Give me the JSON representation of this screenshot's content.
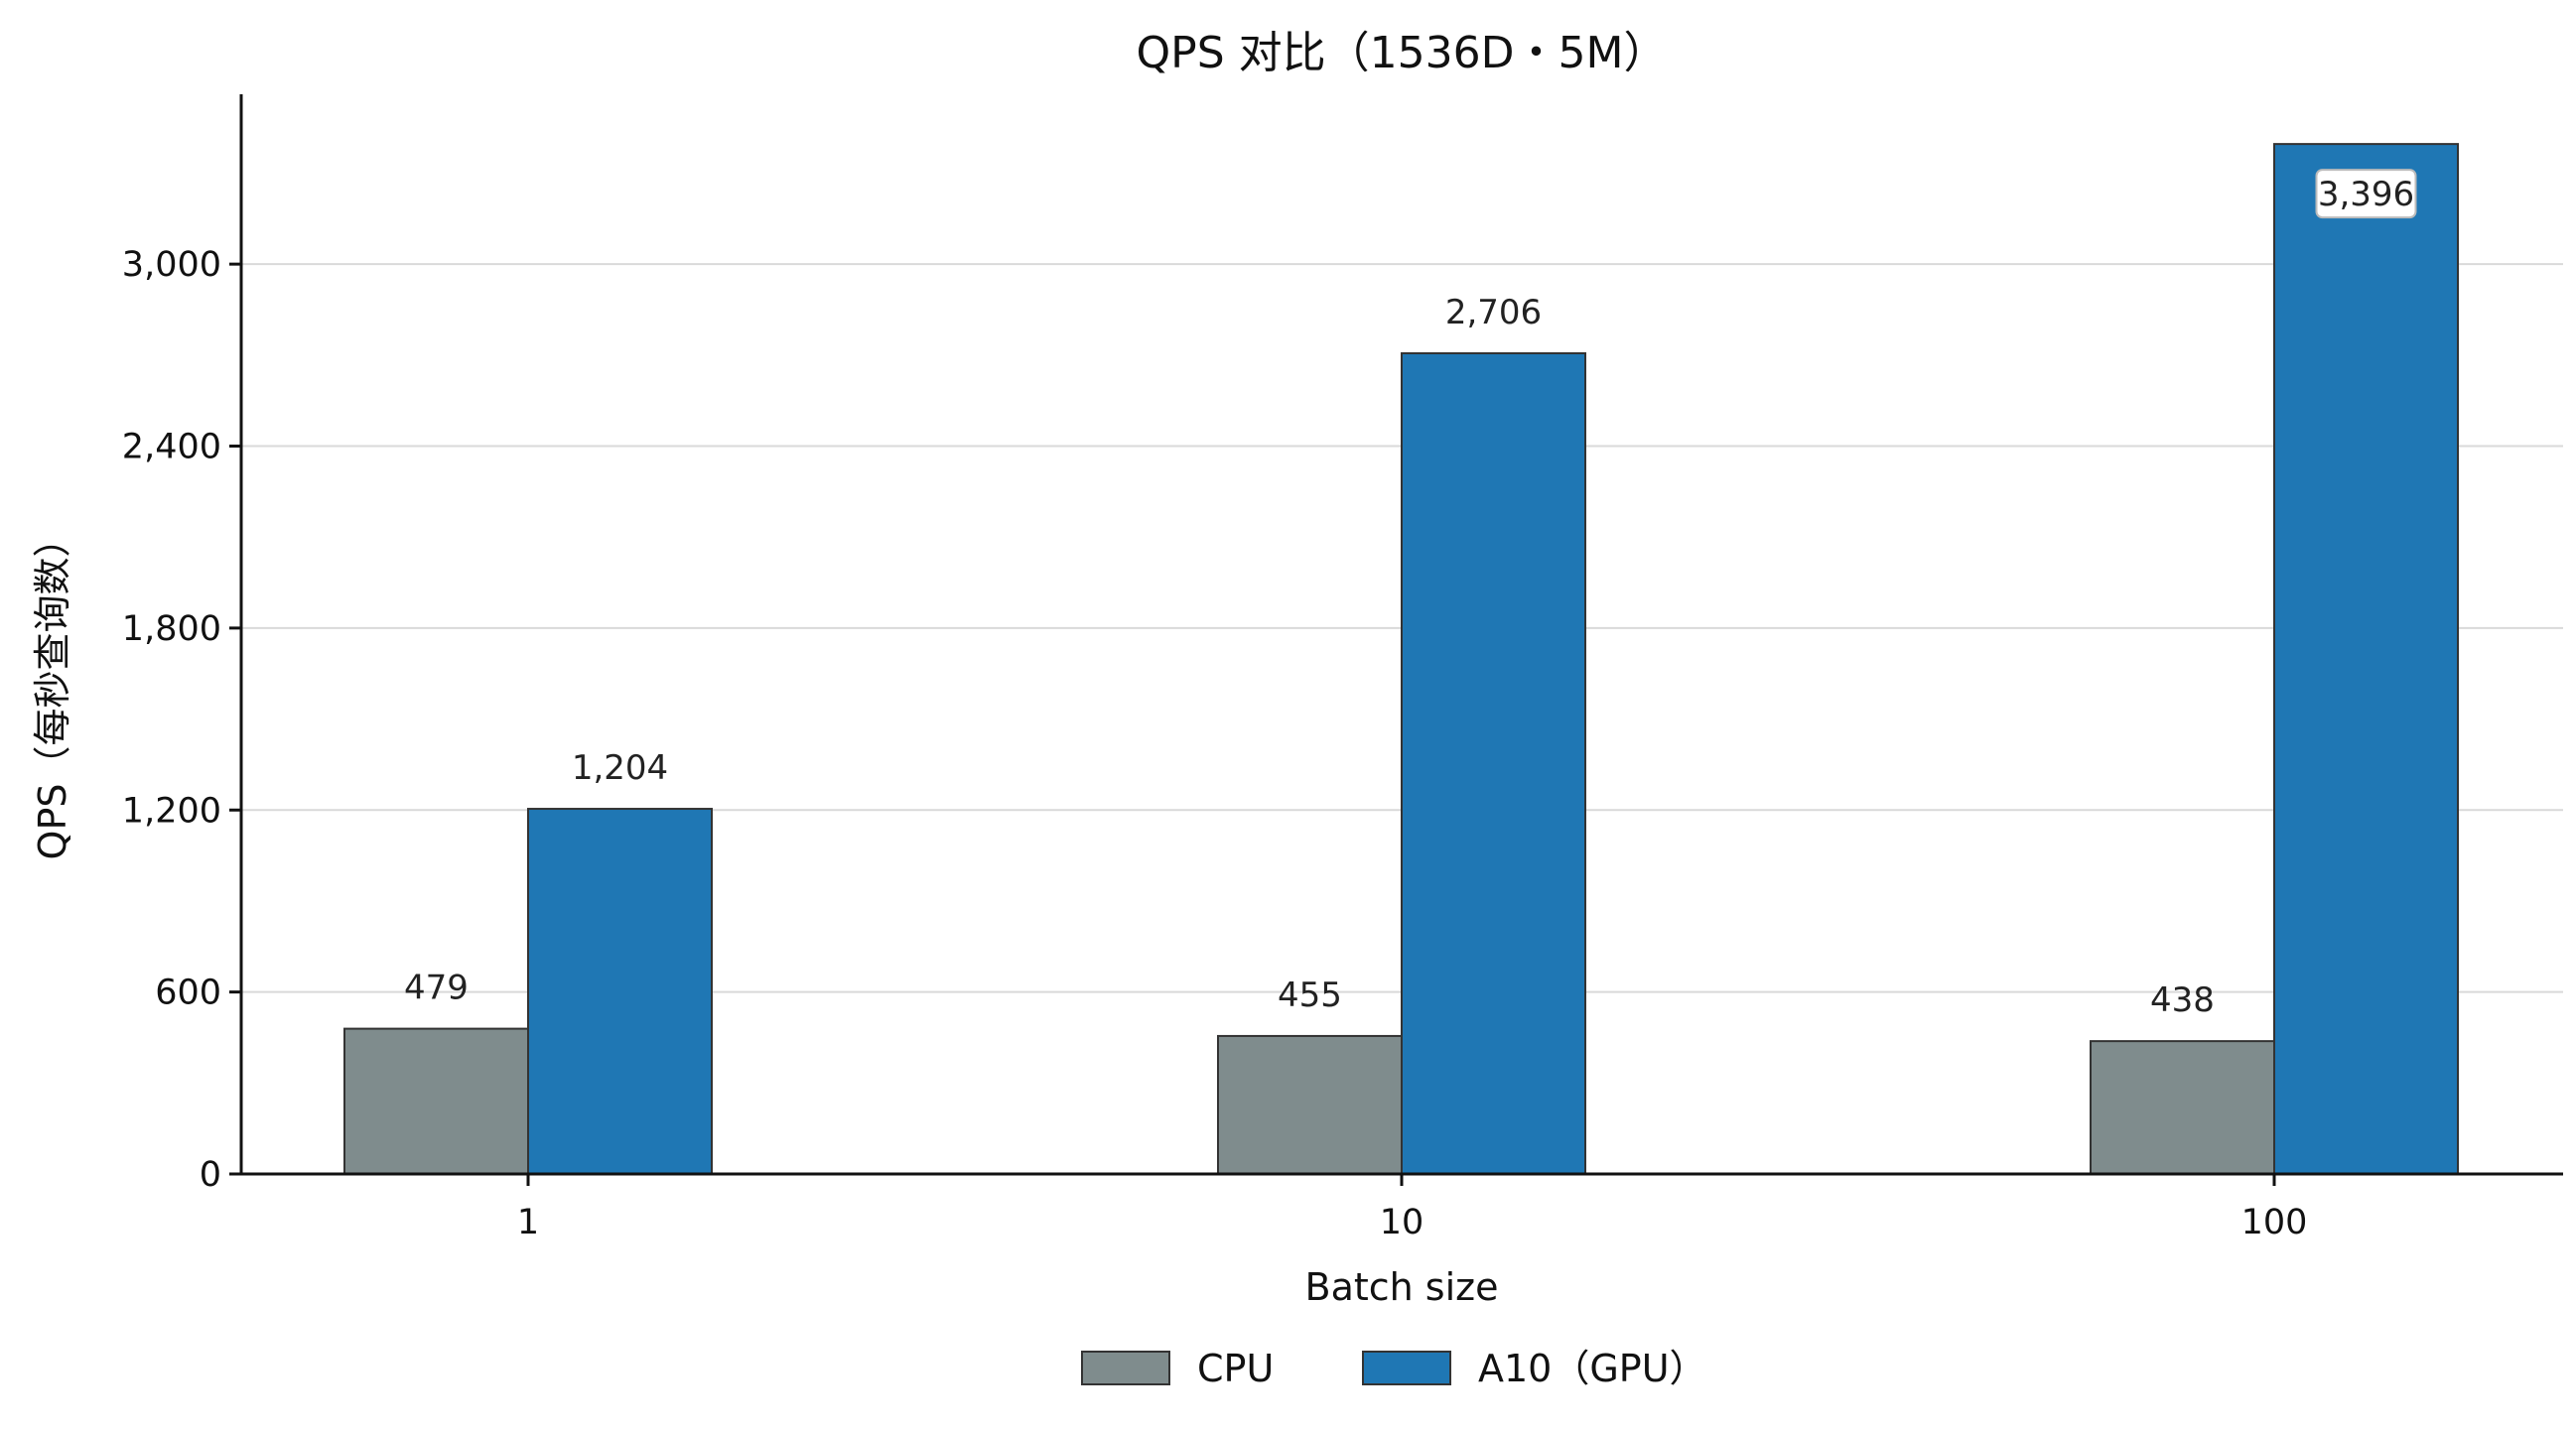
{
  "chart_data": {
    "type": "bar",
    "title": "QPS 对比（1536D・5M）",
    "xlabel": "Batch size",
    "ylabel": "QPS（每秒查询数）",
    "categories": [
      "1",
      "10",
      "100"
    ],
    "series": [
      {
        "name": "CPU",
        "values": [
          479,
          455,
          438
        ],
        "color": "#7f8c8d"
      },
      {
        "name": "A10（GPU）",
        "values": [
          1204,
          2706,
          3396
        ],
        "color": "#1f77b4"
      }
    ],
    "ylim": [
      0,
      3560
    ],
    "yticks": [
      0,
      600,
      1200,
      1800,
      2400,
      3000
    ],
    "ytick_labels": [
      "0",
      "600",
      "1,200",
      "1,800",
      "2,400",
      "3,000"
    ],
    "data_labels": [
      [
        "479",
        "455",
        "438"
      ],
      [
        "1,204",
        "2,706",
        "3,396"
      ]
    ],
    "grid": "horizontal",
    "legend_position": "bottom-center"
  }
}
